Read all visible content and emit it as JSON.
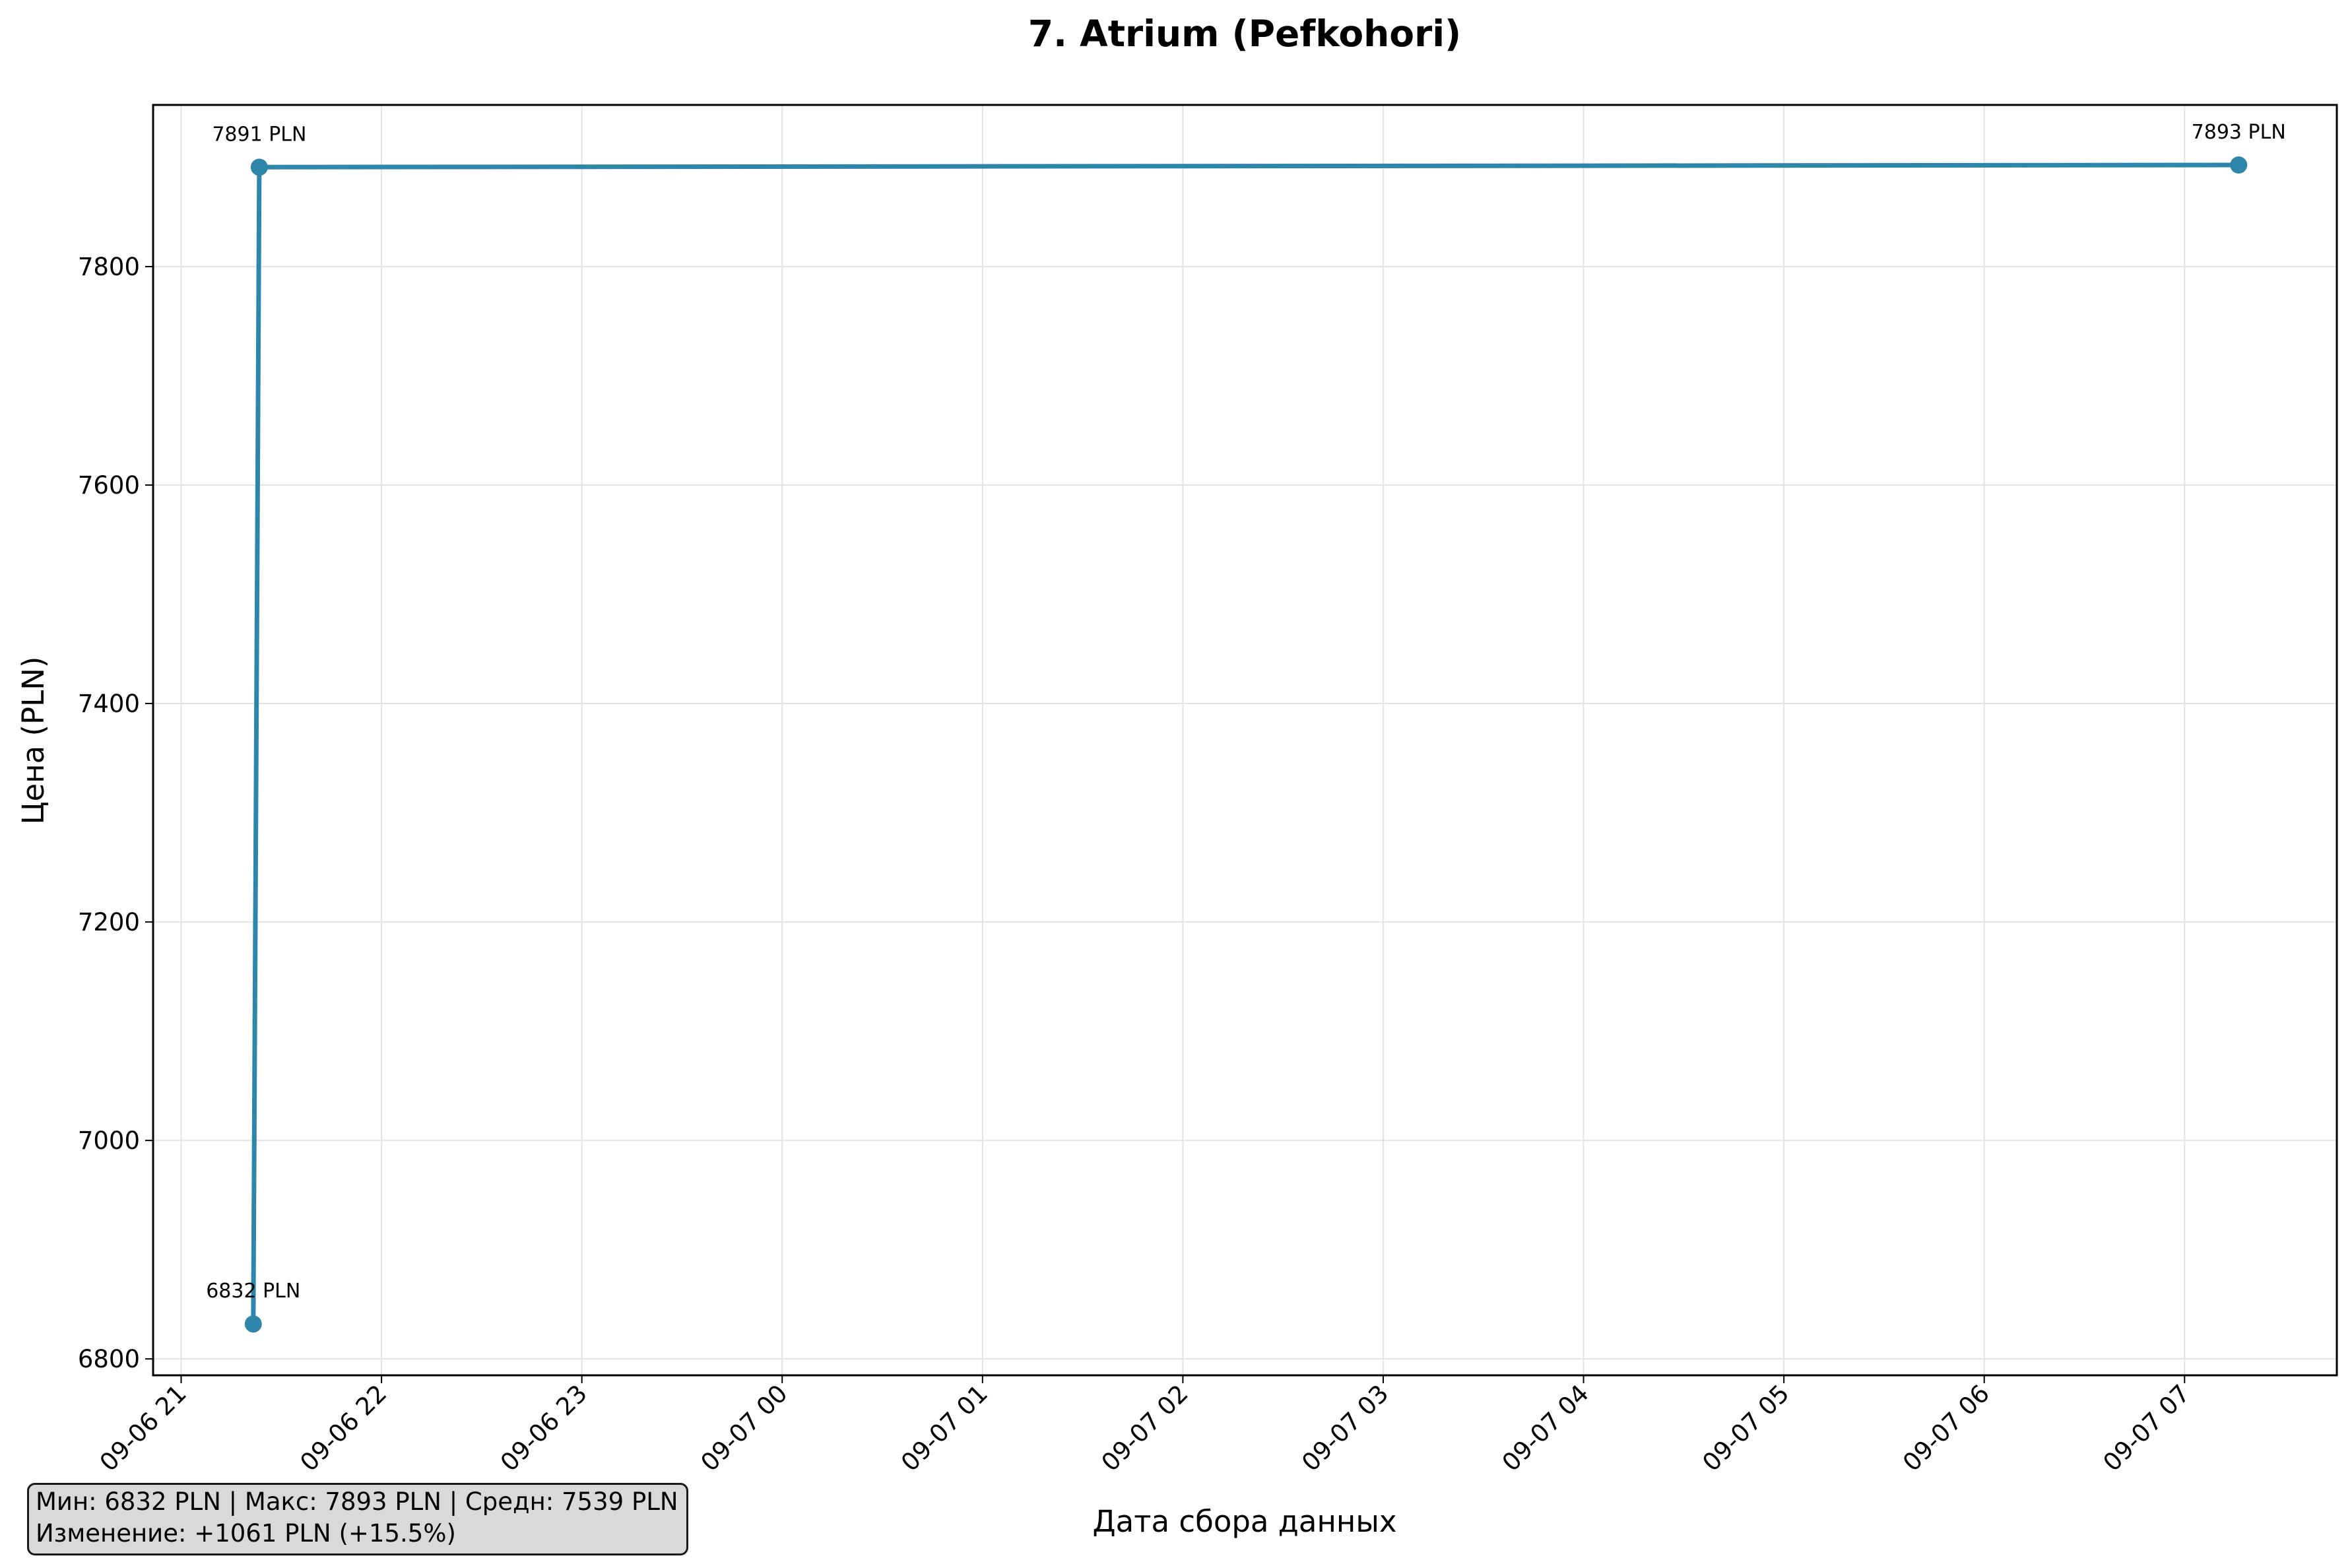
{
  "chart_data": {
    "type": "line",
    "title": "7. Atrium (Pefkohori)",
    "xlabel": "Дата сбора данных",
    "ylabel": "Цена (PLN)",
    "x_tick_labels": [
      "09-06 21",
      "09-06 22",
      "09-06 23",
      "09-07 00",
      "09-07 01",
      "09-07 02",
      "09-07 03",
      "09-07 04",
      "09-07 05",
      "09-07 06",
      "09-07 07"
    ],
    "y_ticks": [
      6800,
      7000,
      7200,
      7400,
      7600,
      7800
    ],
    "ylim": [
      6785,
      7948
    ],
    "xlim_hours": [
      -0.14,
      10.76
    ],
    "grid": true,
    "color": "#2e86ab",
    "series": [
      {
        "points": [
          {
            "x": "2025-09-06 21:22",
            "hours": 0.36,
            "y": 6832,
            "label": "6832 PLN"
          },
          {
            "x": "2025-09-06 21:24",
            "hours": 0.39,
            "y": 7891,
            "label": "7891 PLN"
          },
          {
            "x": "2025-09-07 07:16",
            "hours": 10.27,
            "y": 7893,
            "label": "7893 PLN"
          }
        ]
      }
    ]
  },
  "stats": {
    "line1": "Мин: 6832 PLN | Макс: 7893 PLN | Средн: 7539 PLN",
    "line2": "Изменение: +1061 PLN (+15.5%)"
  }
}
